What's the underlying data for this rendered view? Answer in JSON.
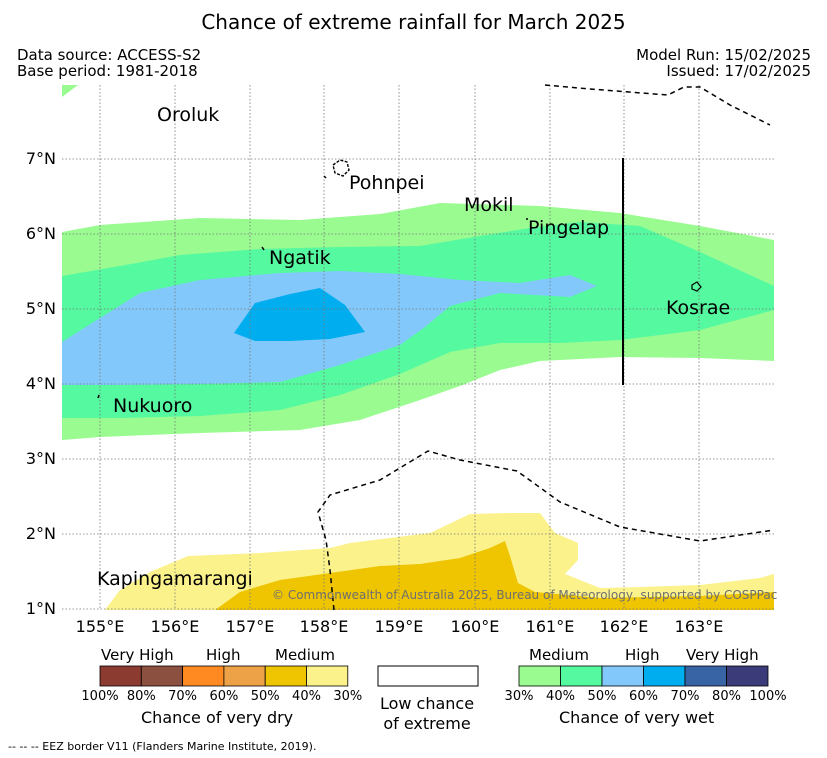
{
  "title": "Chance of extreme rainfall for March 2025",
  "meta": {
    "data_source": "Data source: ACCESS-S2",
    "base_period": "Base period: 1981-2018",
    "model_run": "Model Run: 15/02/2025",
    "issued": "Issued: 17/02/2025"
  },
  "map": {
    "lon_ticks": [
      "155°E",
      "156°E",
      "157°E",
      "158°E",
      "159°E",
      "160°E",
      "161°E",
      "162°E",
      "163°E"
    ],
    "lat_ticks": [
      "7°N",
      "6°N",
      "5°N",
      "4°N",
      "3°N",
      "2°N",
      "1°N"
    ],
    "places": [
      {
        "name": "Oroluk",
        "lon": 155.8,
        "lat": 7.6
      },
      {
        "name": "Pohnpei",
        "lon": 158.2,
        "lat": 6.9
      },
      {
        "name": "Mokil",
        "lon": 160.6,
        "lat": 6.7
      },
      {
        "name": "Pingelap",
        "lon": 160.7,
        "lat": 6.2
      },
      {
        "name": "Ngatik",
        "lon": 157.1,
        "lat": 5.8
      },
      {
        "name": "Kosrae",
        "lon": 163.0,
        "lat": 5.3
      },
      {
        "name": "Nukuoro",
        "lon": 155.0,
        "lat": 3.9
      },
      {
        "name": "Kapingamarangi",
        "lon": 154.8,
        "lat": 1.1
      }
    ],
    "copyright": "© Commonwealth of Australia 2025, Bureau of Meteorology, supported by COSPPac"
  },
  "legend": {
    "dry": {
      "headers": [
        "Very High",
        "High",
        "Medium"
      ],
      "colors": [
        "#8c3b30",
        "#8c5040",
        "#ff8a22",
        "#eea248",
        "#eec500",
        "#fbf28c"
      ],
      "percents": [
        "100%",
        "80%",
        "70%",
        "60%",
        "50%",
        "40%",
        "30%"
      ],
      "caption": "Chance of very dry"
    },
    "low": {
      "line1": "Low chance",
      "line2": "of extreme"
    },
    "wet": {
      "headers": [
        "Medium",
        "High",
        "Very High"
      ],
      "colors": [
        "#9afb91",
        "#55f99f",
        "#83c8fb",
        "#00aeef",
        "#3864a6",
        "#3c3b79"
      ],
      "percents": [
        "30%",
        "40%",
        "50%",
        "60%",
        "70%",
        "80%",
        "100%"
      ],
      "caption": "Chance of very wet"
    }
  },
  "footnote": "-- -- -- EEZ border V11 (Flanders Marine Institute, 2019).",
  "colors": {
    "wet_30": "#9afb91",
    "wet_40": "#55f99f",
    "wet_50": "#83c8fb",
    "wet_60": "#00aeef",
    "dry_30": "#fbf28c",
    "dry_50": "#eec500"
  }
}
